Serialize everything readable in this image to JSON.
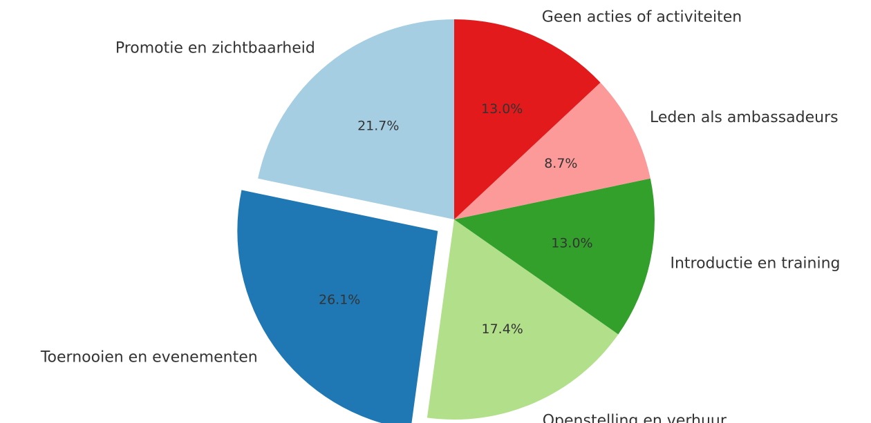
{
  "chart_data": {
    "type": "pie",
    "categories": [
      "Promotie en zichtbaarheid",
      "Toernooien en evenementen",
      "Openstelling en verhuur",
      "Introductie en training",
      "Leden als ambassadeurs",
      "Geen acties of activiteiten"
    ],
    "values": [
      21.7,
      26.1,
      17.4,
      13.0,
      8.7,
      13.0
    ],
    "value_labels": [
      "21.7%",
      "26.1%",
      "17.4%",
      "13.0%",
      "8.7%",
      "13.0%"
    ],
    "colors": [
      "#a6cee3",
      "#1f78b4",
      "#b2df8a",
      "#33a02c",
      "#fb9a99",
      "#e31a1c"
    ],
    "explode": [
      0,
      0.1,
      0,
      0,
      0,
      0
    ],
    "startangle": 90
  }
}
